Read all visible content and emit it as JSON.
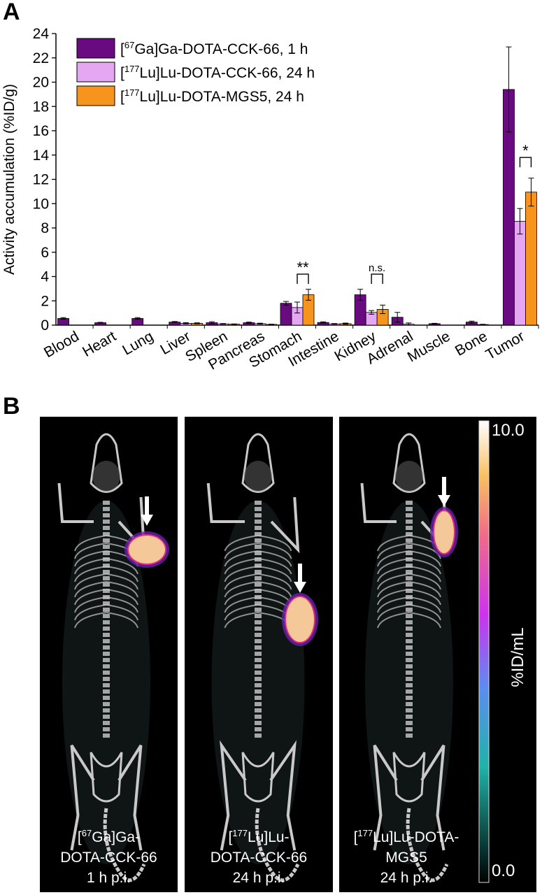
{
  "panel_labels": {
    "a": "A",
    "b": "B"
  },
  "chart_data": {
    "type": "bar",
    "ylabel": "Activity accumulation (%ID/g)",
    "ylim": [
      0,
      24
    ],
    "yticks": [
      0,
      2,
      4,
      6,
      8,
      10,
      12,
      14,
      16,
      18,
      20,
      22,
      24
    ],
    "categories": [
      "Blood",
      "Heart",
      "Lung",
      "Liver",
      "Spleen",
      "Pancreas",
      "Stomach",
      "Intestine",
      "Kidney",
      "Adrenal",
      "Muscle",
      "Bone",
      "Tumor"
    ],
    "legend_position": "top-left",
    "series": [
      {
        "name_parts": {
          "pre": "[",
          "sup": "67",
          "post": "Ga]Ga-DOTA-CCK-66, 1 h"
        },
        "color": "#6a0a80",
        "values": [
          0.55,
          0.2,
          0.55,
          0.25,
          0.2,
          0.2,
          1.8,
          0.22,
          2.5,
          0.65,
          0.12,
          0.25,
          19.4
        ],
        "errors": [
          0.07,
          0.03,
          0.07,
          0.05,
          0.08,
          0.05,
          0.15,
          0.05,
          0.45,
          0.4,
          0.03,
          0.08,
          3.5
        ]
      },
      {
        "name_parts": {
          "pre": "[",
          "sup": "177",
          "post": "Lu]Lu-DOTA-CCK-66, 24 h"
        },
        "color": "#e6a7f2",
        "values": [
          0,
          0,
          0,
          0.15,
          0.1,
          0.12,
          1.45,
          0.1,
          1.05,
          0.08,
          0,
          0.05,
          8.55
        ],
        "errors": [
          0,
          0,
          0,
          0.05,
          0.03,
          0.04,
          0.45,
          0.03,
          0.15,
          0.1,
          0,
          0.02,
          1.05
        ]
      },
      {
        "name_parts": {
          "pre": "[",
          "sup": "177",
          "post": "Lu]Lu-DOTA-MGS5, 24 h"
        },
        "color": "#f7941d",
        "values": [
          0,
          0,
          0,
          0.15,
          0.08,
          0.06,
          2.5,
          0.12,
          1.3,
          0,
          0,
          0,
          10.95
        ],
        "errors": [
          0,
          0,
          0,
          0.04,
          0.02,
          0.02,
          0.45,
          0.05,
          0.35,
          0,
          0,
          0,
          1.15
        ]
      }
    ],
    "annotations": [
      {
        "category": "Stomach",
        "text": "**",
        "y_bracket": 4.2
      },
      {
        "category": "Kidney",
        "text": "n.s.",
        "y_bracket": 4.2
      },
      {
        "category": "Tumor",
        "text": "*",
        "y_bracket": 13.8
      }
    ]
  },
  "images": [
    {
      "caption_line1": {
        "pre": "[",
        "sup": "67",
        "post": "Ga]Ga-"
      },
      "caption_line2": "DOTA-CCK-66",
      "caption_line3": "1 h p.i."
    },
    {
      "caption_line1": {
        "pre": "[",
        "sup": "177",
        "post": "Lu]Lu-"
      },
      "caption_line2": "DOTA-CCK-66",
      "caption_line3": "24 h p.i."
    },
    {
      "caption_line1": {
        "pre": "[",
        "sup": "177",
        "post": "Lu]Lu-DOTA-"
      },
      "caption_line2": "MGS5",
      "caption_line3": "24 h p.i."
    }
  ],
  "colorbar": {
    "max_label": "10.0",
    "min_label": "0.0",
    "unit": "%ID/mL"
  }
}
